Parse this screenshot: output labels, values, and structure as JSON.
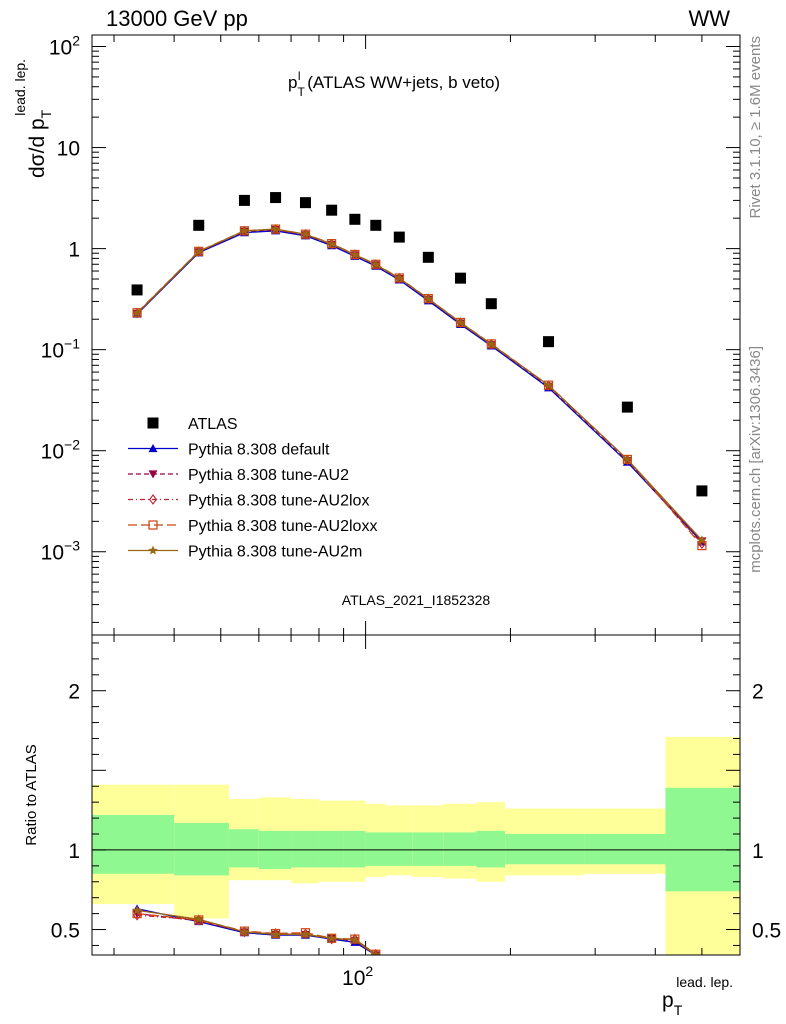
{
  "header": {
    "left": "13000 GeV pp",
    "right": "WW"
  },
  "side_labels": {
    "rivet": "Rivet 3.1.10, ≥ 1.6M events",
    "mcplots": "mcplots.cern.ch [arXiv:1306.3436]"
  },
  "watermark": "ATLAS_2021_I1852328",
  "chart_data": [
    {
      "type": "scatter",
      "title": "p_T^l (ATLAS WW+jets, b veto)",
      "title_parts": {
        "main": "p",
        "sub": "T",
        "sup": "l",
        "rest": " (ATLAS WW+jets, b veto)"
      },
      "ylabel": "dσ/d p_T^lead. lep.",
      "ylabel_parts": {
        "main": "dσ/d p",
        "sub": "T",
        "sup": "lead. lep."
      },
      "xlabel": "p_T^lead. lep.",
      "xlabel_parts": {
        "main": "p",
        "sub": "T",
        "sup": "lead. lep."
      },
      "x_scale": "log",
      "y_scale": "log",
      "xlim": [
        27,
        600
      ],
      "ylim": [
        0.00015,
        130
      ],
      "x_tick_labels": [
        {
          "value": 100,
          "base": "10",
          "exp": "2"
        }
      ],
      "y_tick_labels": [
        {
          "value": 0.001,
          "base": "10",
          "exp": "−3"
        },
        {
          "value": 0.01,
          "base": "10",
          "exp": "−2"
        },
        {
          "value": 0.1,
          "base": "10",
          "exp": "−1"
        },
        {
          "value": 1,
          "text": "1"
        },
        {
          "value": 10,
          "text": "10"
        },
        {
          "value": 100,
          "base": "10",
          "exp": "2"
        }
      ],
      "legend_position": "left",
      "x": [
        33.5,
        45,
        56,
        65,
        75,
        85,
        95,
        105,
        117.5,
        135,
        157.5,
        182.5,
        240,
        350,
        500
      ],
      "series": [
        {
          "name": "ATLAS",
          "color": "#000000",
          "marker": "square",
          "line": "none",
          "values": [
            0.39,
            1.7,
            3.0,
            3.2,
            2.85,
            2.4,
            1.95,
            1.7,
            1.3,
            0.82,
            0.51,
            0.285,
            0.12,
            0.027,
            0.004
          ]
        },
        {
          "name": "Pythia 8.308 default",
          "color": "#0000cc",
          "marker": "triangle-up",
          "line": "solid",
          "values": [
            0.225,
            0.91,
            1.44,
            1.5,
            1.34,
            1.07,
            0.84,
            0.67,
            0.49,
            0.305,
            0.178,
            0.109,
            0.042,
            0.0077,
            0.00125
          ]
        },
        {
          "name": "Pythia 8.308 tune-AU2",
          "color": "#990044",
          "marker": "triangle-down",
          "line": "dashed",
          "values": [
            0.228,
            0.93,
            1.48,
            1.54,
            1.37,
            1.1,
            0.865,
            0.69,
            0.505,
            0.315,
            0.183,
            0.112,
            0.0435,
            0.008,
            0.00128
          ]
        },
        {
          "name": "Pythia 8.308 tune-AU2lox",
          "color": "#bb2233",
          "marker": "diamond-open",
          "line": "dashdot",
          "values": [
            0.23,
            0.935,
            1.49,
            1.55,
            1.38,
            1.11,
            0.87,
            0.695,
            0.508,
            0.318,
            0.185,
            0.113,
            0.044,
            0.0081,
            0.0012
          ]
        },
        {
          "name": "Pythia 8.308 tune-AU2loxx",
          "color": "#cc4411",
          "marker": "square-open",
          "line": "longdash",
          "values": [
            0.232,
            0.94,
            1.5,
            1.56,
            1.39,
            1.12,
            0.875,
            0.7,
            0.512,
            0.32,
            0.186,
            0.114,
            0.0445,
            0.0082,
            0.00115
          ]
        },
        {
          "name": "Pythia 8.308 tune-AU2m",
          "color": "#996611",
          "marker": "star",
          "line": "solid",
          "values": [
            0.23,
            0.935,
            1.5,
            1.56,
            1.39,
            1.11,
            0.87,
            0.695,
            0.51,
            0.318,
            0.185,
            0.113,
            0.0445,
            0.0082,
            0.0013
          ]
        }
      ]
    },
    {
      "type": "line",
      "ylabel": "Ratio to ATLAS",
      "x_scale": "log",
      "xlim": [
        27,
        600
      ],
      "ylim": [
        0.34,
        2.35
      ],
      "y_tick_labels": [
        {
          "value": 0.5,
          "text": "0.5"
        },
        {
          "value": 1,
          "text": "1"
        },
        {
          "value": 2,
          "text": "2"
        }
      ],
      "reference_line": 1,
      "uncertainty_bins": [
        {
          "lo": 27,
          "hi": 40,
          "inner": [
            0.85,
            1.22
          ],
          "outer": [
            0.66,
            1.41
          ]
        },
        {
          "lo": 40,
          "hi": 52,
          "inner": [
            0.84,
            1.17
          ],
          "outer": [
            0.57,
            1.41
          ]
        },
        {
          "lo": 52,
          "hi": 60,
          "inner": [
            0.89,
            1.13
          ],
          "outer": [
            0.81,
            1.32
          ]
        },
        {
          "lo": 60,
          "hi": 70,
          "inner": [
            0.88,
            1.12
          ],
          "outer": [
            0.81,
            1.33
          ]
        },
        {
          "lo": 70,
          "hi": 80,
          "inner": [
            0.89,
            1.12
          ],
          "outer": [
            0.79,
            1.32
          ]
        },
        {
          "lo": 80,
          "hi": 90,
          "inner": [
            0.89,
            1.12
          ],
          "outer": [
            0.8,
            1.31
          ]
        },
        {
          "lo": 90,
          "hi": 100,
          "inner": [
            0.89,
            1.12
          ],
          "outer": [
            0.8,
            1.31
          ]
        },
        {
          "lo": 100,
          "hi": 110,
          "inner": [
            0.9,
            1.11
          ],
          "outer": [
            0.83,
            1.29
          ]
        },
        {
          "lo": 110,
          "hi": 125,
          "inner": [
            0.9,
            1.11
          ],
          "outer": [
            0.84,
            1.28
          ]
        },
        {
          "lo": 125,
          "hi": 145,
          "inner": [
            0.9,
            1.11
          ],
          "outer": [
            0.83,
            1.28
          ]
        },
        {
          "lo": 145,
          "hi": 170,
          "inner": [
            0.9,
            1.11
          ],
          "outer": [
            0.82,
            1.29
          ]
        },
        {
          "lo": 170,
          "hi": 195,
          "inner": [
            0.89,
            1.12
          ],
          "outer": [
            0.8,
            1.3
          ]
        },
        {
          "lo": 195,
          "hi": 285,
          "inner": [
            0.91,
            1.1
          ],
          "outer": [
            0.84,
            1.26
          ]
        },
        {
          "lo": 285,
          "hi": 420,
          "inner": [
            0.91,
            1.1
          ],
          "outer": [
            0.85,
            1.26
          ]
        },
        {
          "lo": 420,
          "hi": 600,
          "inner": [
            0.74,
            1.39
          ],
          "outer": [
            0.34,
            1.71
          ]
        }
      ],
      "band_colors": {
        "inner": "#90f890",
        "outer": "#ffff99"
      },
      "x": [
        33.5,
        45,
        56,
        65,
        75,
        85,
        95,
        105
      ],
      "series": [
        {
          "name": "Pythia 8.308 default",
          "color": "#0000cc",
          "marker": "triangle-up",
          "line": "solid",
          "values": [
            0.63,
            0.55,
            0.48,
            0.465,
            0.465,
            0.44,
            0.42,
            0.34
          ]
        },
        {
          "name": "Pythia 8.308 tune-AU2",
          "color": "#990044",
          "marker": "triangle-down",
          "line": "dashed",
          "values": [
            0.6,
            0.555,
            0.485,
            0.47,
            0.468,
            0.445,
            0.43,
            0.34
          ]
        },
        {
          "name": "Pythia 8.308 tune-AU2lox",
          "color": "#bb2233",
          "marker": "diamond-open",
          "line": "dashdot",
          "values": [
            0.59,
            0.56,
            0.485,
            0.475,
            0.472,
            0.44,
            0.44,
            0.345
          ]
        },
        {
          "name": "Pythia 8.308 tune-AU2loxx",
          "color": "#cc4411",
          "marker": "square-open",
          "line": "longdash",
          "values": [
            0.6,
            0.56,
            0.49,
            0.475,
            0.48,
            0.445,
            0.44,
            0.345
          ]
        },
        {
          "name": "Pythia 8.308 tune-AU2m",
          "color": "#996611",
          "marker": "star",
          "line": "solid",
          "values": [
            0.62,
            0.565,
            0.485,
            0.47,
            0.47,
            0.445,
            0.435,
            0.34
          ]
        }
      ]
    }
  ]
}
